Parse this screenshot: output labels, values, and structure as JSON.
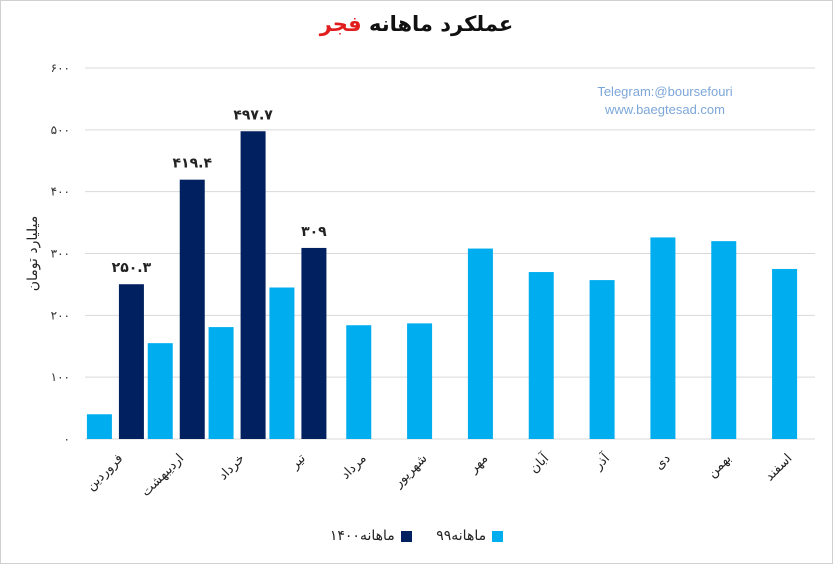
{
  "colors": {
    "series_1399": "#00aeef",
    "series_1400": "#002060",
    "grid": "#d9d9d9"
  },
  "chart_data": {
    "type": "bar",
    "title_main": "عملکرد ماهانه",
    "title_highlight": "فجر",
    "ylabel": "میلیارد تومان",
    "xlabel": "",
    "ylim": [
      0,
      600
    ],
    "yticks": [
      "۰",
      "۱۰۰",
      "۲۰۰",
      "۳۰۰",
      "۴۰۰",
      "۵۰۰",
      "۶۰۰"
    ],
    "ytick_values": [
      0,
      100,
      200,
      300,
      400,
      500,
      600
    ],
    "grid": true,
    "legend_position": "bottom",
    "categories": [
      "فروردین",
      "اردیبهشت",
      "خرداد",
      "تیر",
      "مرداد",
      "شهریور",
      "مهر",
      "آبان",
      "آذر",
      "دی",
      "بهمن",
      "اسفند"
    ],
    "series": [
      {
        "name": "ماهانه۹۹",
        "values": [
          40,
          155,
          181,
          245,
          184,
          187,
          308,
          270,
          257,
          326,
          320,
          275
        ]
      },
      {
        "name": "ماهانه۱۴۰۰",
        "values": [
          250.3,
          419.4,
          497.7,
          309,
          null,
          null,
          null,
          null,
          null,
          null,
          null,
          null
        ]
      }
    ],
    "data_labels": [
      "۲۵۰.۳",
      "۴۱۹.۴",
      "۴۹۷.۷",
      "۳۰۹"
    ]
  },
  "watermark": {
    "line1": "Telegram:@boursefouri",
    "line2": "www.baegtesad.com"
  }
}
